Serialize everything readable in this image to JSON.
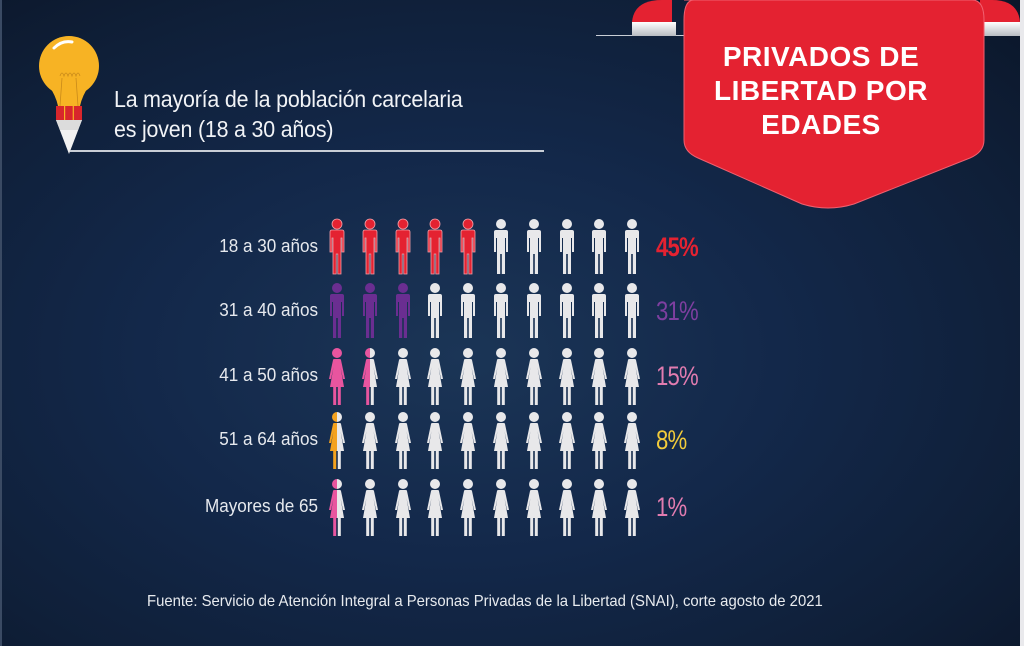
{
  "headline": {
    "line1": "La mayoría de la población carcelaria",
    "line2": "es joven (18 a 30 años)"
  },
  "banner": {
    "line1": "PRIVADOS DE",
    "line2": "LIBERTAD POR",
    "line3": "EDADES",
    "color": "#e42231"
  },
  "icons": {
    "idea": "lightbulb-pencil-icon",
    "male": "male-person-icon",
    "female": "female-person-icon"
  },
  "colors": {
    "inactive": "#e8e8ea"
  },
  "chart_data": {
    "type": "pictogram",
    "title": "PRIVADOS DE LIBERTAD POR EDADES",
    "subtitle": "La mayoría de la población carcelaria es joven (18 a 30 años)",
    "icons_per_row": 10,
    "unit": "%",
    "rows": [
      {
        "label": "18  a 30 años",
        "value": 45,
        "value_label": "45%",
        "filled_icons": 5,
        "icon": "male",
        "color": "#e42231"
      },
      {
        "label": "31  a 40 años",
        "value": 31,
        "value_label": "31%",
        "filled_icons": 3,
        "icon": "male",
        "color": "#6a2e91"
      },
      {
        "label": "41  a 50 años",
        "value": 15,
        "value_label": "15%",
        "filled_icons": 1.5,
        "icon": "female",
        "color": "#e8559f"
      },
      {
        "label": "51 a 64  años",
        "value": 8,
        "value_label": "8%",
        "filled_icons": 0.5,
        "icon": "female",
        "color": "#f4a21e"
      },
      {
        "label": "Mayores de 65",
        "value": 1,
        "value_label": "1%",
        "filled_icons": 0.5,
        "icon": "female",
        "color": "#e8559f"
      }
    ],
    "value_label_colors": [
      "#e42231",
      "#7e3fa0",
      "#e27cb0",
      "#f2cb3a",
      "#e27cb0"
    ]
  },
  "source": "Fuente: Servicio de Atención Integral a Personas Privadas de la Libertad (SNAI), corte agosto de 2021"
}
